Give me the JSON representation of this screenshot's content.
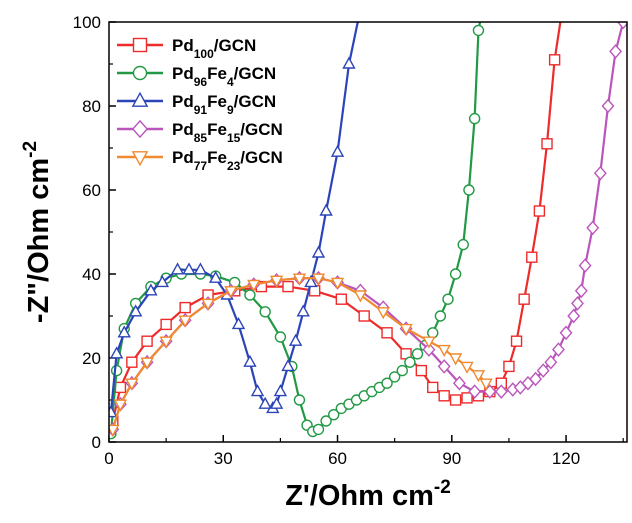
{
  "chart_data": {
    "type": "scatter",
    "xlabel": "Z'/Ohm cm",
    "xlabel_sup": "-2",
    "ylabel": "-Z\"/Ohm cm",
    "ylabel_sup": "-2",
    "xlim": [
      0,
      136
    ],
    "ylim": [
      0,
      100
    ],
    "xticks": [
      0,
      30,
      60,
      90,
      120
    ],
    "yticks": [
      0,
      20,
      40,
      60,
      80,
      100
    ],
    "grid": false,
    "legend_position": "top-left",
    "series": [
      {
        "label": [
          {
            "t": "Pd"
          },
          {
            "t": "100",
            "s": "sub"
          },
          {
            "t": "/GCN"
          }
        ],
        "color": "#ee2b2b",
        "marker": "square",
        "x": [
          1,
          3,
          6,
          10,
          15,
          20,
          26,
          33,
          40,
          47,
          54,
          61,
          67,
          73,
          78,
          82,
          85,
          88,
          91,
          94,
          97,
          100,
          103,
          105,
          107,
          109,
          111,
          113,
          115,
          117,
          119
        ],
        "y": [
          5,
          13,
          19,
          24,
          28,
          32,
          35,
          36,
          37,
          37,
          36,
          34,
          30,
          26,
          21,
          17,
          13,
          11,
          10,
          10.5,
          11,
          12,
          14,
          18,
          24,
          34,
          44,
          55,
          71,
          91,
          103
        ]
      },
      {
        "label": [
          {
            "t": "Pd"
          },
          {
            "t": "96",
            "s": "sub"
          },
          {
            "t": "Fe"
          },
          {
            "t": "4",
            "s": "sub"
          },
          {
            "t": "/GCN"
          }
        ],
        "color": "#229944",
        "marker": "circle",
        "x": [
          0.5,
          2,
          4,
          7,
          11,
          15,
          19,
          24,
          28,
          33,
          37,
          41,
          45,
          48,
          50,
          52,
          53.5,
          55,
          57,
          59,
          61,
          63,
          65,
          67,
          69,
          71,
          73,
          75,
          77,
          79,
          81,
          83,
          85,
          87,
          89,
          91,
          93,
          94.5,
          96,
          97,
          98,
          99
        ],
        "y": [
          2,
          17,
          27,
          33,
          37,
          39,
          40,
          40,
          39.5,
          38,
          35,
          31,
          25,
          18,
          10,
          4,
          2.5,
          3,
          5,
          6.5,
          8,
          9,
          10,
          11,
          12,
          13,
          14,
          15.5,
          17,
          19,
          21,
          23,
          26,
          30,
          34,
          40,
          47,
          60,
          77,
          98,
          103,
          110
        ]
      },
      {
        "label": [
          {
            "t": "Pd"
          },
          {
            "t": "91",
            "s": "sub"
          },
          {
            "t": "Fe"
          },
          {
            "t": "9",
            "s": "sub"
          },
          {
            "t": "/GCN"
          }
        ],
        "color": "#2b44b8",
        "marker": "triangle-up",
        "x": [
          0.5,
          2,
          4,
          7,
          11,
          14,
          18,
          21,
          24,
          28,
          31,
          34,
          37,
          39,
          41,
          43,
          44,
          45,
          47,
          49,
          51,
          53,
          55,
          57,
          60,
          63,
          66
        ],
        "y": [
          7,
          21,
          26,
          31,
          36,
          38,
          41,
          41,
          41,
          39,
          35,
          28,
          19,
          12,
          9,
          8,
          9,
          12,
          18,
          24,
          31,
          38,
          45,
          55,
          69,
          90,
          103
        ]
      },
      {
        "label": [
          {
            "t": "Pd"
          },
          {
            "t": "85",
            "s": "sub"
          },
          {
            "t": "Fe"
          },
          {
            "t": "15",
            "s": "sub"
          },
          {
            "t": "/GCN"
          }
        ],
        "color": "#bb55bb",
        "marker": "diamond",
        "x": [
          1,
          3,
          6,
          10,
          15,
          20,
          26,
          32,
          38,
          44,
          50,
          55,
          60,
          66,
          72,
          78,
          84,
          88,
          92,
          96,
          100,
          103,
          106,
          108,
          110,
          112,
          114,
          116,
          118,
          120,
          122,
          123,
          124,
          125,
          127,
          129,
          131,
          133,
          135
        ],
        "y": [
          3,
          9,
          14,
          19,
          24,
          29,
          33,
          36,
          37.5,
          38.5,
          39,
          39,
          38,
          36,
          32,
          27,
          22,
          18,
          14,
          12,
          12,
          12,
          12.5,
          13,
          14,
          15,
          17,
          19,
          22,
          26,
          30,
          33,
          36,
          42,
          51,
          64,
          80,
          93,
          100
        ]
      },
      {
        "label": [
          {
            "t": "Pd"
          },
          {
            "t": "77",
            "s": "sub"
          },
          {
            "t": "Fe"
          },
          {
            "t": "23",
            "s": "sub"
          },
          {
            "t": "/GCN"
          }
        ],
        "color": "#f08a2e",
        "marker": "triangle-down",
        "x": [
          1,
          3,
          6,
          10,
          15,
          20,
          26,
          32,
          38,
          44,
          50,
          55,
          60,
          66,
          72,
          78,
          84,
          88,
          91,
          94,
          97,
          99
        ],
        "y": [
          3,
          9,
          14,
          19,
          24,
          29,
          33,
          36,
          37.5,
          38.5,
          39,
          39,
          38,
          35,
          31,
          27,
          24,
          22,
          20,
          18,
          16,
          14
        ]
      }
    ]
  }
}
